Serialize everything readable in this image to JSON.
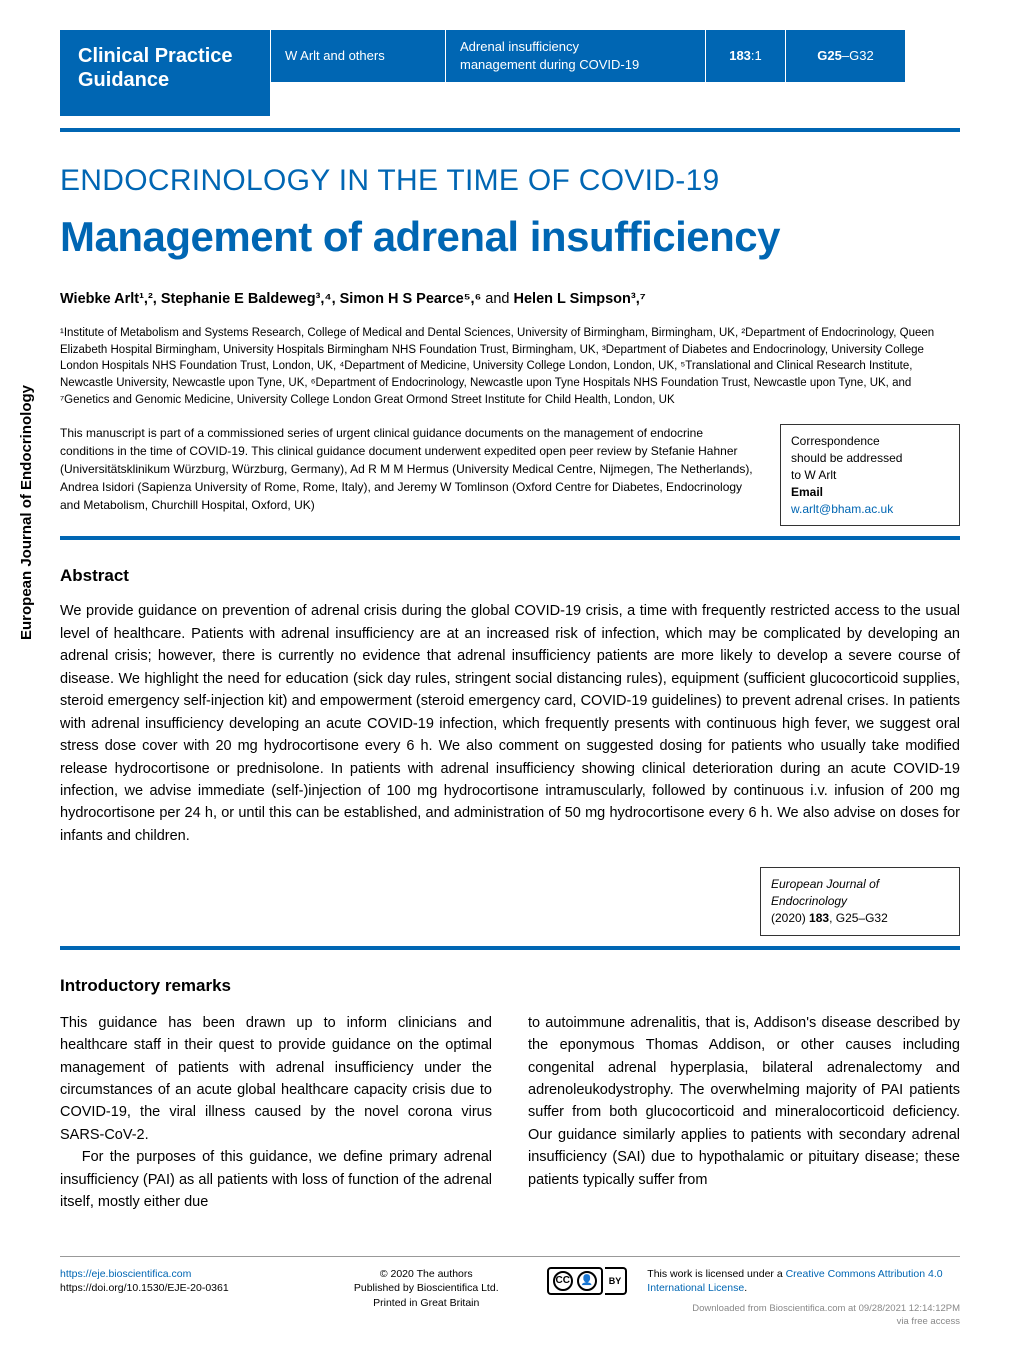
{
  "header": {
    "badge_line1": "Clinical Practice",
    "badge_line2": "Guidance",
    "authors_short": "W Arlt and others",
    "topic_line1": "Adrenal insufficiency",
    "topic_line2": "management during COVID-19",
    "volume": "183",
    "issue": ":1",
    "page_start": "G25",
    "page_range_rest": "–G32"
  },
  "title": {
    "series": "ENDOCRINOLOGY IN THE TIME OF COVID-19",
    "article": "Management of adrenal insufficiency"
  },
  "authors_line": "Wiebke Arlt¹,², Stephanie E Baldeweg³,⁴, Simon H S Pearce⁵,⁶",
  "authors_line_and": " and ",
  "authors_last": "Helen L Simpson³,⁷",
  "affiliations": "¹Institute of Metabolism and Systems Research, College of Medical and Dental Sciences, University of Birmingham, Birmingham, UK, ²Department of Endocrinology, Queen Elizabeth Hospital Birmingham, University Hospitals Birmingham NHS Foundation Trust, Birmingham, UK, ³Department of Diabetes and Endocrinology, University College London Hospitals NHS Foundation Trust, London, UK, ⁴Department of Medicine, University College London, London, UK, ⁵Translational and Clinical Research Institute, Newcastle University, Newcastle upon Tyne, UK, ⁶Department of Endocrinology, Newcastle upon Tyne Hospitals NHS Foundation Trust, Newcastle upon Tyne, UK, and ⁷Genetics and Genomic Medicine, University College London Great Ormond Street Institute for Child Health, London, UK",
  "review_text": "This manuscript is part of a commissioned series of urgent clinical guidance documents on the management of endocrine conditions in the time of COVID-19. This clinical guidance document underwent expedited open peer review by Stefanie Hahner (Universitätsklinikum Würzburg, Würzburg, Germany), Ad R M M Hermus (University Medical Centre, Nijmegen, The Netherlands), Andrea Isidori (Sapienza University of Rome, Rome, Italy), and Jeremy W Tomlinson (Oxford Centre for Diabetes, Endocrinology and Metabolism, Churchill Hospital, Oxford, UK)",
  "correspondence": {
    "line1": "Correspondence",
    "line2": "should be addressed",
    "line3": "to W Arlt",
    "email_label": "Email",
    "email": "w.arlt@bham.ac.uk"
  },
  "sidebar_label": "European Journal of Endocrinology",
  "abstract": {
    "heading": "Abstract",
    "body": "We provide guidance on prevention of adrenal crisis during the global COVID-19 crisis, a time with frequently restricted access to the usual level of healthcare. Patients with adrenal insufficiency are at an increased risk of infection, which may be complicated by developing an adrenal crisis; however, there is currently no evidence that adrenal insufficiency patients are more likely to develop a severe course of disease. We highlight the need for education (sick day rules, stringent social distancing rules), equipment (sufficient glucocorticoid supplies, steroid emergency self-injection kit) and empowerment (steroid emergency card, COVID-19 guidelines) to prevent adrenal crises. In patients with adrenal insufficiency developing an acute COVID-19 infection, which frequently presents with continuous high fever, we suggest oral stress dose cover with 20 mg hydrocortisone every 6 h. We also comment on suggested dosing for patients who usually take modified release hydrocortisone or prednisolone. In patients with adrenal insufficiency showing clinical deterioration during an acute COVID-19 infection, we advise immediate (self-)injection of 100 mg hydrocortisone intramuscularly, followed by continuous i.v. infusion of 200 mg hydrocortisone per 24 h, or until this can be established, and administration of 50 mg hydrocortisone every 6 h. We also advise on doses for infants and children."
  },
  "citation": {
    "journal": "European Journal of",
    "journal2": "Endocrinology",
    "details_prefix": "(2020) ",
    "details_bold": "183",
    "details_suffix": ", G25–G32"
  },
  "intro": {
    "heading": "Introductory remarks",
    "col1_p1": "This guidance has been drawn up to inform clinicians and healthcare staff in their quest to provide guidance on the optimal management of patients with adrenal insufficiency under the circumstances of an acute global healthcare capacity crisis due to COVID-19, the viral illness caused by the novel corona virus SARS-CoV-2.",
    "col1_p2": "For the purposes of this guidance, we define primary adrenal insufficiency (PAI) as all patients with loss of function of the adrenal itself, mostly either due",
    "col2_p1": "to autoimmune adrenalitis, that is, Addison's disease described by the eponymous Thomas Addison, or other causes including congenital adrenal hyperplasia, bilateral adrenalectomy and adrenoleukodystrophy. The overwhelming majority of PAI patients suffer from both glucocorticoid and mineralocorticoid deficiency. Our guidance similarly applies to patients with secondary adrenal insufficiency (SAI) due to hypothalamic or pituitary disease; these patients typically suffer from"
  },
  "footer": {
    "url": "https://eje.bioscientifica.com",
    "doi": "https://doi.org/10.1530/EJE-20-0361",
    "copyright": "© 2020 The authors",
    "publisher": "Published by Bioscientifica Ltd.",
    "printed": "Printed in Great Britain",
    "by_label": "BY",
    "license_text": "This work is licensed under a ",
    "license_link": "Creative Commons Attribution 4.0 International License",
    "license_suffix": ".",
    "download_line": "Downloaded from Bioscientifica.com at 09/28/2021 12:14:12PM",
    "via": "via free access"
  },
  "colors": {
    "brand": "#0066b3",
    "text": "#000000",
    "footer_muted": "#888888"
  }
}
